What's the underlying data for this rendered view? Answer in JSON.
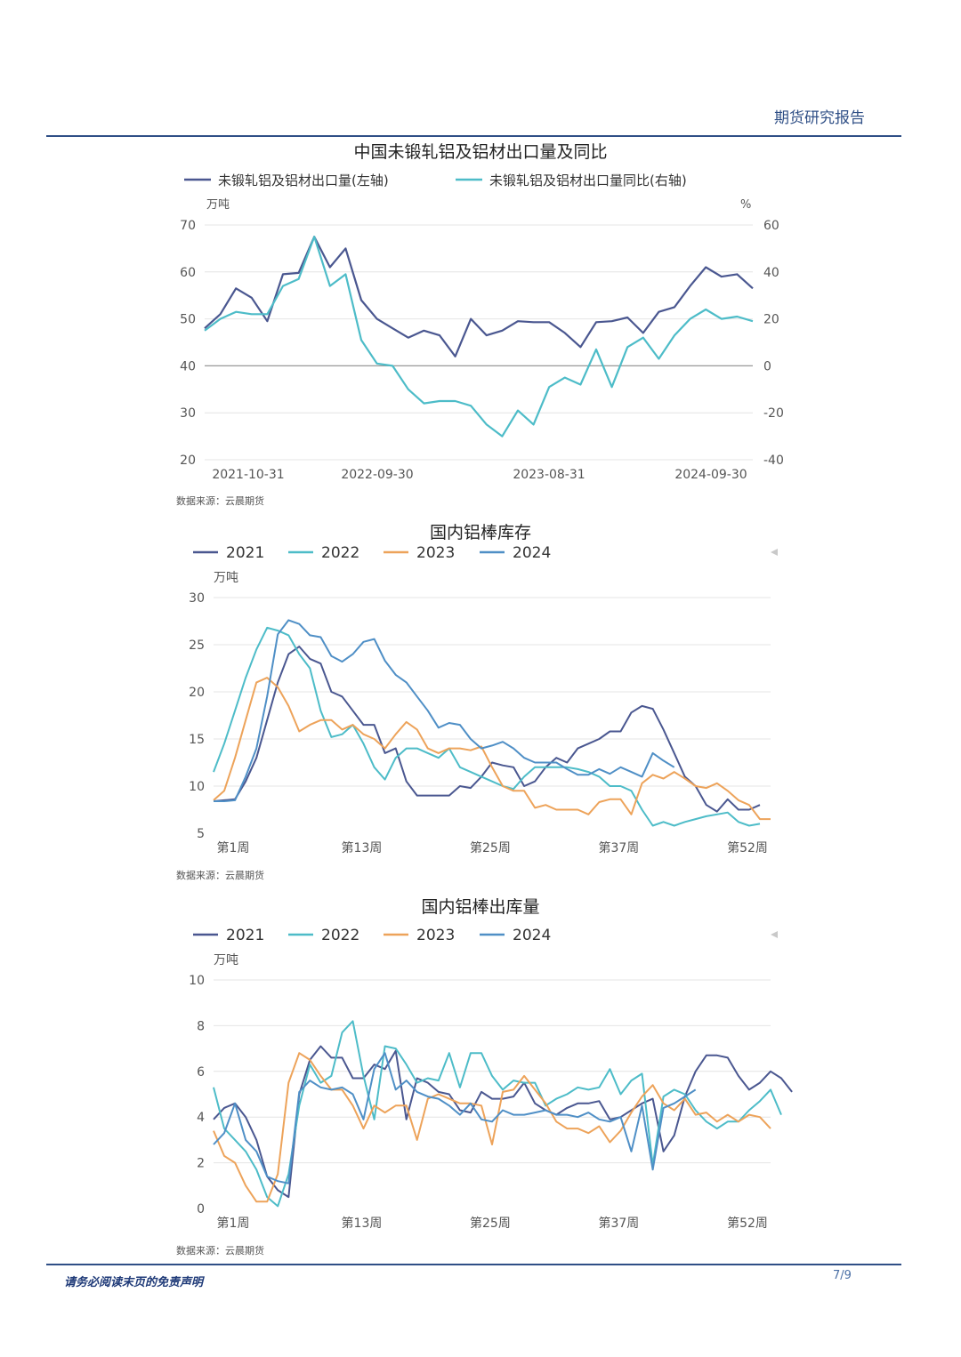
{
  "header": {
    "title": "期货研究报告"
  },
  "footer": {
    "disclaimer": "请务必阅读末页的免责声明",
    "page": "7/9"
  },
  "chart_data": [
    {
      "type": "line",
      "title": "中国未锻轧铝及铝材出口量及同比",
      "left_unit": "万吨",
      "right_unit": "%",
      "x_tick_labels": [
        "2021-10-31",
        "2022-09-30",
        "2023-08-31",
        "2024-09-30"
      ],
      "y_left": {
        "min": 20,
        "max": 70,
        "ticks": [
          20,
          30,
          40,
          50,
          60,
          70
        ]
      },
      "y_right": {
        "min": -40,
        "max": 60,
        "ticks": [
          -40,
          -20,
          0,
          20,
          40,
          60
        ]
      },
      "series": [
        {
          "name": "未锻轧铝及铝材出口量(左轴)",
          "axis": "left",
          "color": "#4a5790",
          "values": [
            48,
            51,
            56.5,
            54.5,
            49.5,
            59.5,
            59.8,
            67.5,
            61,
            65,
            54,
            50,
            48,
            46,
            47.5,
            46.5,
            42,
            50,
            46.5,
            47.5,
            49.5,
            49.3,
            49.3,
            47,
            44,
            49.3,
            49.5,
            50.3,
            47,
            51.5,
            52.5,
            57,
            61,
            59,
            59.5,
            56.5
          ]
        },
        {
          "name": "未锻轧铝及铝材出口量同比(右轴)",
          "axis": "right",
          "color": "#4dbcc8",
          "values": [
            15,
            20,
            23,
            22,
            22,
            34,
            37,
            55,
            34,
            39,
            11,
            1,
            0,
            -10,
            -16,
            -15,
            -15,
            -17,
            -25,
            -30,
            -19,
            -25,
            -9,
            -5,
            -8,
            7,
            -9,
            8,
            12,
            3,
            13,
            20,
            24,
            20,
            21,
            19
          ]
        }
      ],
      "source": "数据来源：云晨期货"
    },
    {
      "type": "line",
      "title": "国内铝棒库存",
      "unit": "万吨",
      "x_tick_labels": [
        "第1周",
        "第13周",
        "第25周",
        "第37周",
        "第52周"
      ],
      "y_axis": {
        "min": 5,
        "max": 30,
        "ticks": [
          5,
          10,
          15,
          20,
          25,
          30
        ]
      },
      "legend": [
        "2021",
        "2022",
        "2023",
        "2024"
      ],
      "series": [
        {
          "name": "2021",
          "color": "#4a5790",
          "values": [
            8.4,
            8.5,
            8.6,
            10.5,
            13,
            17,
            21,
            24,
            24.8,
            23.5,
            23,
            20,
            19.5,
            18,
            16.5,
            16.5,
            13.5,
            14,
            10.5,
            9,
            9,
            9,
            9,
            10,
            9.8,
            11,
            12.5,
            12.2,
            12,
            10,
            10.5,
            12,
            13,
            12.5,
            14,
            14.5,
            15,
            15.8,
            15.8,
            17.8,
            18.5,
            18.2,
            16,
            13.5,
            11,
            10,
            8,
            7.3,
            8.6,
            7.5,
            7.5,
            8
          ]
        },
        {
          "name": "2022",
          "color": "#4dbcc8",
          "values": [
            11.5,
            14.5,
            18,
            21.5,
            24.5,
            26.8,
            26.5,
            26,
            24,
            22.5,
            18,
            15.2,
            15.5,
            16.5,
            14.5,
            12,
            10.7,
            13,
            14,
            14,
            13.5,
            13,
            14,
            12,
            11.5,
            11,
            10.5,
            10,
            9.7,
            11,
            12,
            12,
            12,
            12,
            11.8,
            11.5,
            11,
            10,
            10,
            9.5,
            7.5,
            5.8,
            6.2,
            5.8,
            6.2,
            6.5,
            6.8,
            7,
            7.2,
            6.2,
            5.8,
            6
          ]
        },
        {
          "name": "2023",
          "color": "#eda35a",
          "values": [
            8.5,
            9.5,
            13,
            17,
            21,
            21.5,
            20.5,
            18.5,
            15.8,
            16.5,
            17,
            17,
            16,
            16.5,
            15.5,
            15,
            14,
            15.5,
            16.8,
            16,
            14,
            13.5,
            14,
            14,
            13.8,
            14.2,
            12,
            10,
            9.5,
            9.5,
            7.7,
            8,
            7.5,
            7.5,
            7.5,
            7,
            8.3,
            8.6,
            8.6,
            7,
            10.3,
            11.2,
            10.8,
            11.5,
            10.8,
            10,
            9.8,
            10.3,
            9.5,
            8.5,
            8,
            6.5,
            6.5
          ]
        },
        {
          "name": "2024",
          "color": "#4f8fc6",
          "values": [
            8.4,
            8.4,
            8.5,
            11,
            14,
            19.5,
            26.1,
            27.6,
            27.2,
            26,
            25.8,
            23.8,
            23.2,
            24,
            25.3,
            25.6,
            23.3,
            21.8,
            21,
            19.5,
            18,
            16.2,
            16.7,
            16.5,
            15,
            14,
            14.3,
            14.7,
            14,
            13,
            12.5,
            12.5,
            12.5,
            11.8,
            11.2,
            11.2,
            11.8,
            11.3,
            12,
            11.5,
            11,
            13.5,
            12.7,
            12
          ]
        }
      ],
      "source": "数据来源：云晨期货"
    },
    {
      "type": "line",
      "title": "国内铝棒出库量",
      "unit": "万吨",
      "x_tick_labels": [
        "第1周",
        "第13周",
        "第25周",
        "第37周",
        "第52周"
      ],
      "y_axis": {
        "min": 0,
        "max": 10,
        "ticks": [
          0,
          2,
          4,
          6,
          8,
          10
        ]
      },
      "legend": [
        "2021",
        "2022",
        "2023",
        "2024"
      ],
      "series": [
        {
          "name": "2021",
          "color": "#4a5790",
          "values": [
            3.9,
            4.4,
            4.6,
            4,
            3,
            1.4,
            0.8,
            0.5,
            5,
            6.5,
            7.1,
            6.6,
            6.6,
            5.7,
            5.7,
            6.3,
            6.1,
            6.9,
            3.9,
            5.7,
            5.5,
            5.1,
            5,
            4.3,
            4.2,
            5.1,
            4.8,
            4.8,
            4.9,
            5.5,
            4.6,
            4.3,
            4.1,
            4.4,
            4.6,
            4.6,
            4.7,
            3.9,
            4,
            4.3,
            4.6,
            4.8,
            2.5,
            3.2,
            4.9,
            6,
            6.7,
            6.7,
            6.6,
            5.8,
            5.2,
            5.5,
            6,
            5.7,
            5.1
          ]
        },
        {
          "name": "2022",
          "color": "#4dbcc8",
          "values": [
            5.3,
            3.5,
            3,
            2.5,
            1.7,
            0.5,
            0.1,
            1.5,
            4.5,
            6.3,
            5.5,
            5.8,
            7.7,
            8.2,
            5.8,
            3.9,
            7.1,
            7,
            6.3,
            5.5,
            5.7,
            5.6,
            6.8,
            5.3,
            6.8,
            6.8,
            5.8,
            5.2,
            5.6,
            5.5,
            5.5,
            4.5,
            4.8,
            5,
            5.3,
            5.2,
            5.3,
            6.1,
            5,
            5.6,
            5.9,
            1.9,
            4.9,
            5.2,
            5,
            4.3,
            3.8,
            3.5,
            3.8,
            3.8,
            4.3,
            4.7,
            5.2,
            4.1
          ]
        },
        {
          "name": "2023",
          "color": "#eda35a",
          "values": [
            3.4,
            2.3,
            2,
            1,
            0.3,
            0.3,
            1.5,
            5.5,
            6.8,
            6.5,
            5.8,
            5.2,
            5.2,
            4.5,
            3.5,
            4.5,
            4.2,
            4.5,
            4.5,
            3,
            4.8,
            5,
            4.8,
            4.6,
            4.6,
            4.5,
            2.8,
            5.1,
            5.2,
            5.8,
            5.2,
            4.6,
            3.8,
            3.5,
            3.5,
            3.3,
            3.6,
            2.9,
            3.4,
            4.2,
            4.9,
            5.4,
            4.6,
            4.3,
            4.8,
            4.1,
            4.2,
            3.8,
            4.1,
            3.8,
            4.1,
            4,
            3.5
          ]
        },
        {
          "name": "2024",
          "color": "#4f8fc6",
          "values": [
            2.8,
            3.3,
            4.6,
            3,
            2.5,
            1.4,
            1.2,
            1.1,
            5.1,
            5.6,
            5.3,
            5.2,
            5.3,
            5,
            3.9,
            6.1,
            6.8,
            5.2,
            5.6,
            5.1,
            4.9,
            4.8,
            4.5,
            4.1,
            4.6,
            3.9,
            3.8,
            4.3,
            4.1,
            4.1,
            4.2,
            4.3,
            4.1,
            4.1,
            4,
            4.2,
            3.9,
            3.8,
            4,
            2.5,
            4.5,
            1.7,
            4.4,
            4.6,
            4.9,
            5.2
          ]
        }
      ],
      "source": "数据来源：云晨期货"
    }
  ]
}
